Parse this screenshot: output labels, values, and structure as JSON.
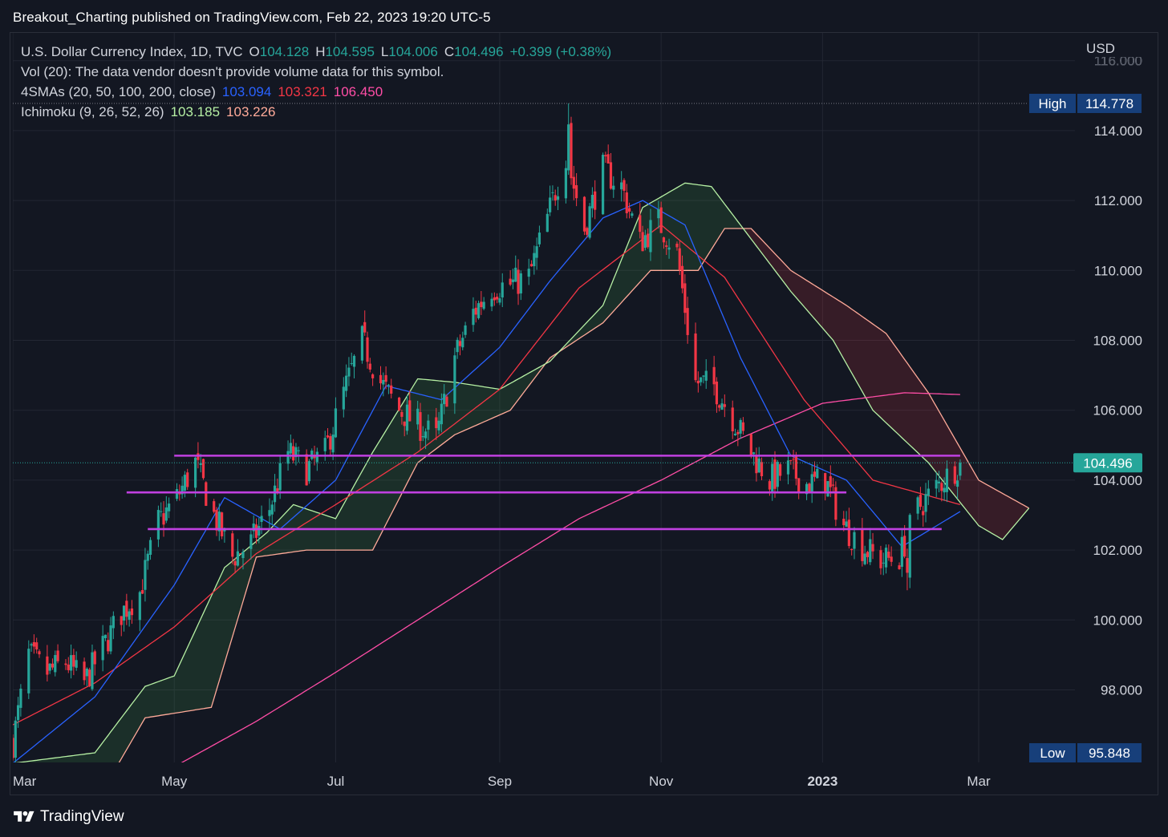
{
  "header": {
    "publisher_line": "Breakout_Charting published on TradingView.com, Feb 22, 2023 19:20 UTC-5"
  },
  "legend": {
    "symbol": "U.S. Dollar Currency Index, 1D, TVC",
    "open_label": "O",
    "open": "104.128",
    "high_label": "H",
    "high": "104.595",
    "low_label": "L",
    "low": "104.006",
    "close_label": "C",
    "close": "104.496",
    "change": "+0.399 (+0.38%)",
    "volume_note": "Vol (20): The data vendor doesn't provide volume data for this symbol.",
    "sma_label": "4SMAs (20, 50, 100, 200, close)",
    "sma_values": [
      "103.094",
      "103.321",
      "106.450"
    ],
    "ichimoku_label": "Ichimoku (9, 26, 52, 26)",
    "ichimoku_values": [
      "103.185",
      "103.226"
    ]
  },
  "footer": {
    "brand": "TradingView"
  },
  "colors": {
    "background": "#131722",
    "up": "#26a69a",
    "down": "#f23645",
    "sma20": "#2962ff",
    "sma50": "#f23645",
    "sma200": "#ff4da6",
    "ichimoku_lead_a": "#b6f0a4",
    "ichimoku_lead_b": "#ffaa99",
    "support": "#c040e0",
    "high_badge": "#173f7a"
  },
  "chart_data": {
    "type": "candlestick",
    "currency": "USD",
    "ylim": [
      95.8,
      116.0
    ],
    "y_ticks": [
      98,
      100,
      102,
      104,
      106,
      108,
      110,
      112,
      114,
      116
    ],
    "y_tick_labels": [
      "98.000",
      "100.000",
      "102.000",
      "104.000",
      "106.000",
      "108.000",
      "110.000",
      "112.000",
      "114.000",
      "116.000"
    ],
    "x_ticks": [
      {
        "label": "Mar",
        "date": "2022-03-01",
        "bold": false
      },
      {
        "label": "May",
        "date": "2022-05-01",
        "bold": false
      },
      {
        "label": "Jul",
        "date": "2022-07-01",
        "bold": false
      },
      {
        "label": "Sep",
        "date": "2022-09-01",
        "bold": false
      },
      {
        "label": "Nov",
        "date": "2022-11-01",
        "bold": false
      },
      {
        "label": "2023",
        "date": "2023-01-01",
        "bold": true
      },
      {
        "label": "Mar",
        "date": "2023-03-01",
        "bold": false
      }
    ],
    "price_markers": [
      {
        "label": "High",
        "value": "114.778"
      },
      {
        "label": "Low",
        "value": "95.848"
      },
      {
        "label": "",
        "value": "104.496"
      }
    ],
    "horizontal_lines": [
      {
        "name": "resistance-104.7",
        "value": 104.7,
        "from": "2022-05-01",
        "to": "2023-02-22"
      },
      {
        "name": "support-103.65",
        "value": 103.65,
        "from": "2022-04-13",
        "to": "2023-01-10"
      },
      {
        "name": "support-102.6",
        "value": 102.6,
        "from": "2022-04-21",
        "to": "2023-02-15"
      }
    ],
    "price_path": [
      [
        "2022-03-01",
        96.5
      ],
      [
        "2022-03-07",
        99.0
      ],
      [
        "2022-03-14",
        98.5
      ],
      [
        "2022-03-21",
        98.8
      ],
      [
        "2022-03-28",
        98.2
      ],
      [
        "2022-04-04",
        99.2
      ],
      [
        "2022-04-11",
        100.2
      ],
      [
        "2022-04-18",
        100.8
      ],
      [
        "2022-04-25",
        102.8
      ],
      [
        "2022-05-02",
        103.5
      ],
      [
        "2022-05-09",
        104.5
      ],
      [
        "2022-05-16",
        103.0
      ],
      [
        "2022-05-23",
        101.8
      ],
      [
        "2022-05-30",
        102.2
      ],
      [
        "2022-06-06",
        103.2
      ],
      [
        "2022-06-13",
        104.8
      ],
      [
        "2022-06-20",
        104.3
      ],
      [
        "2022-06-27",
        104.8
      ],
      [
        "2022-07-04",
        106.5
      ],
      [
        "2022-07-11",
        108.0
      ],
      [
        "2022-07-18",
        106.8
      ],
      [
        "2022-07-25",
        106.0
      ],
      [
        "2022-08-01",
        105.6
      ],
      [
        "2022-08-08",
        105.2
      ],
      [
        "2022-08-15",
        107.5
      ],
      [
        "2022-08-22",
        108.8
      ],
      [
        "2022-08-29",
        109.5
      ],
      [
        "2022-09-05",
        109.6
      ],
      [
        "2022-09-12",
        109.8
      ],
      [
        "2022-09-19",
        111.5
      ],
      [
        "2022-09-26",
        113.3
      ],
      [
        "2022-10-03",
        111.2
      ],
      [
        "2022-10-10",
        112.9
      ],
      [
        "2022-10-17",
        112.4
      ],
      [
        "2022-10-24",
        110.8
      ],
      [
        "2022-10-31",
        111.4
      ],
      [
        "2022-11-07",
        110.5
      ],
      [
        "2022-11-14",
        106.8
      ],
      [
        "2022-11-21",
        106.7
      ],
      [
        "2022-11-28",
        105.8
      ],
      [
        "2022-12-05",
        104.8
      ],
      [
        "2022-12-12",
        104.0
      ],
      [
        "2022-12-19",
        104.3
      ],
      [
        "2022-12-26",
        103.9
      ],
      [
        "2023-01-02",
        104.0
      ],
      [
        "2023-01-09",
        102.7
      ],
      [
        "2023-01-16",
        102.1
      ],
      [
        "2023-01-23",
        101.7
      ],
      [
        "2023-01-30",
        101.8
      ],
      [
        "2023-02-06",
        103.2
      ],
      [
        "2023-02-13",
        103.8
      ],
      [
        "2023-02-22",
        104.5
      ]
    ],
    "extremes": [
      [
        "2022-09-27",
        114.778
      ],
      [
        "2023-02-02",
        100.85
      ]
    ],
    "sma20": [
      [
        "2022-03-01",
        95.9
      ],
      [
        "2022-04-01",
        97.8
      ],
      [
        "2022-05-01",
        101.0
      ],
      [
        "2022-05-20",
        103.5
      ],
      [
        "2022-06-10",
        102.6
      ],
      [
        "2022-07-01",
        104.0
      ],
      [
        "2022-07-20",
        106.7
      ],
      [
        "2022-08-10",
        106.3
      ],
      [
        "2022-09-01",
        107.8
      ],
      [
        "2022-09-20",
        109.7
      ],
      [
        "2022-10-10",
        111.5
      ],
      [
        "2022-10-25",
        112.0
      ],
      [
        "2022-11-10",
        111.3
      ],
      [
        "2022-12-01",
        107.5
      ],
      [
        "2022-12-20",
        104.7
      ],
      [
        "2023-01-10",
        104.0
      ],
      [
        "2023-01-31",
        102.1
      ],
      [
        "2023-02-22",
        103.1
      ]
    ],
    "sma50": [
      [
        "2022-03-01",
        97.0
      ],
      [
        "2022-04-01",
        98.2
      ],
      [
        "2022-05-01",
        99.8
      ],
      [
        "2022-06-01",
        101.9
      ],
      [
        "2022-07-01",
        103.3
      ],
      [
        "2022-08-01",
        104.8
      ],
      [
        "2022-09-01",
        106.6
      ],
      [
        "2022-10-01",
        109.5
      ],
      [
        "2022-11-01",
        111.3
      ],
      [
        "2022-11-25",
        109.8
      ],
      [
        "2022-12-25",
        106.3
      ],
      [
        "2023-01-20",
        104.0
      ],
      [
        "2023-02-22",
        103.3
      ]
    ],
    "sma200": [
      [
        "2022-05-01",
        95.8
      ],
      [
        "2022-06-01",
        97.1
      ],
      [
        "2022-07-01",
        98.5
      ],
      [
        "2022-08-01",
        100.0
      ],
      [
        "2022-09-01",
        101.5
      ],
      [
        "2022-10-01",
        102.9
      ],
      [
        "2022-11-01",
        104.0
      ],
      [
        "2022-12-01",
        105.2
      ],
      [
        "2023-01-01",
        106.2
      ],
      [
        "2023-02-01",
        106.5
      ],
      [
        "2023-02-22",
        106.45
      ]
    ],
    "ichimoku_lead_a": [
      [
        "2022-03-01",
        95.9
      ],
      [
        "2022-04-01",
        96.2
      ],
      [
        "2022-04-20",
        98.1
      ],
      [
        "2022-05-01",
        98.4
      ],
      [
        "2022-05-20",
        101.5
      ],
      [
        "2022-06-05",
        102.5
      ],
      [
        "2022-06-15",
        103.3
      ],
      [
        "2022-07-01",
        102.9
      ],
      [
        "2022-07-15",
        104.8
      ],
      [
        "2022-08-01",
        106.9
      ],
      [
        "2022-08-15",
        106.8
      ],
      [
        "2022-09-01",
        106.6
      ],
      [
        "2022-09-20",
        107.4
      ],
      [
        "2022-10-10",
        109.0
      ],
      [
        "2022-10-25",
        111.8
      ],
      [
        "2022-11-10",
        112.5
      ],
      [
        "2022-11-20",
        112.4
      ],
      [
        "2022-12-01",
        111.3
      ],
      [
        "2022-12-20",
        109.4
      ],
      [
        "2023-01-05",
        108.0
      ],
      [
        "2023-01-20",
        106.0
      ],
      [
        "2023-02-10",
        104.5
      ],
      [
        "2023-03-01",
        102.7
      ],
      [
        "2023-03-10",
        102.3
      ],
      [
        "2023-03-20",
        103.2
      ]
    ],
    "ichimoku_lead_b": [
      [
        "2022-03-01",
        95.8
      ],
      [
        "2022-04-10",
        95.9
      ],
      [
        "2022-04-20",
        97.2
      ],
      [
        "2022-05-15",
        97.5
      ],
      [
        "2022-06-01",
        101.8
      ],
      [
        "2022-06-20",
        102.0
      ],
      [
        "2022-07-15",
        102.0
      ],
      [
        "2022-08-01",
        104.5
      ],
      [
        "2022-08-15",
        105.3
      ],
      [
        "2022-09-05",
        106.0
      ],
      [
        "2022-09-20",
        107.5
      ],
      [
        "2022-10-10",
        108.5
      ],
      [
        "2022-10-28",
        110.0
      ],
      [
        "2022-11-15",
        110.0
      ],
      [
        "2022-11-25",
        111.2
      ],
      [
        "2022-12-05",
        111.2
      ],
      [
        "2022-12-20",
        110.0
      ],
      [
        "2023-01-10",
        109.0
      ],
      [
        "2023-01-25",
        108.2
      ],
      [
        "2023-02-10",
        106.5
      ],
      [
        "2023-03-01",
        104.0
      ],
      [
        "2023-03-20",
        103.2
      ]
    ]
  }
}
